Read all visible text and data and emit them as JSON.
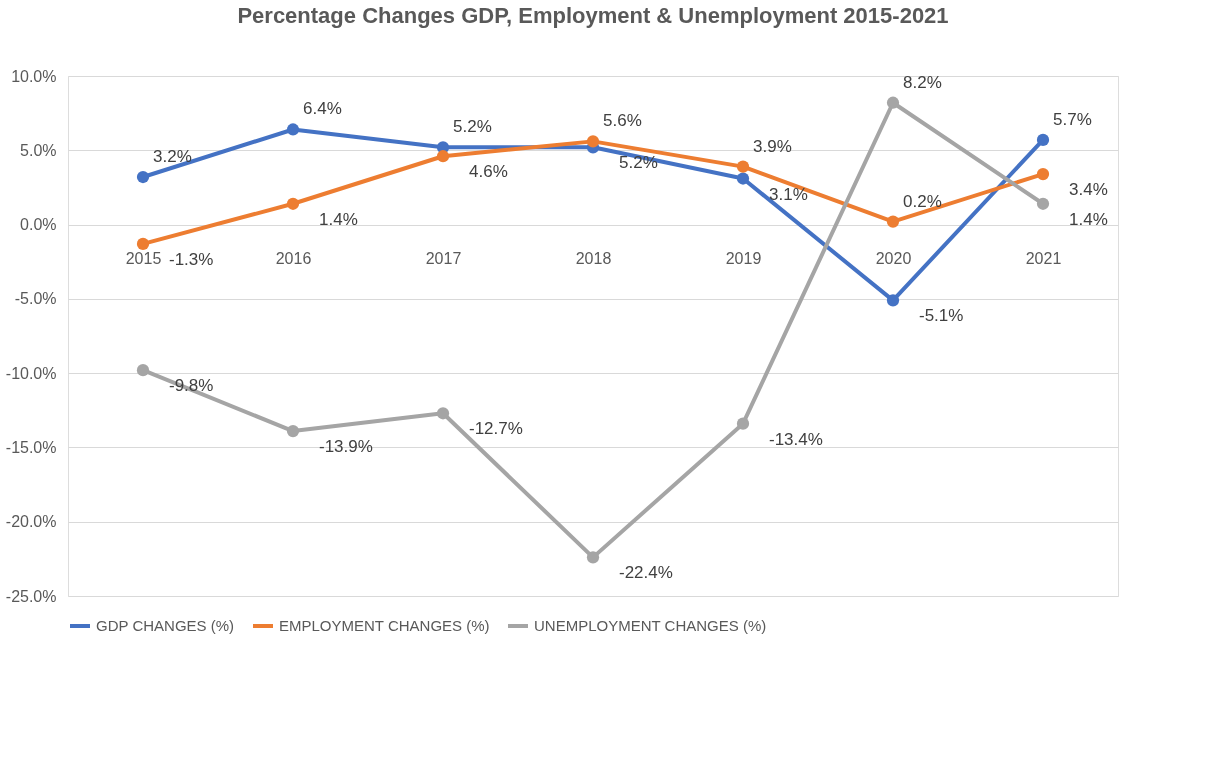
{
  "chart_data": {
    "type": "line",
    "title": "Percentage Changes GDP, Employment & Unemployment 2015-2021",
    "categories": [
      "2015",
      "2016",
      "2017",
      "2018",
      "2019",
      "2020",
      "2021"
    ],
    "series": [
      {
        "name": "GDP CHANGES (%)",
        "color": "#4472c4",
        "values": [
          3.2,
          6.4,
          5.2,
          5.2,
          3.1,
          -5.1,
          5.7
        ],
        "value_labels": [
          "3.2%",
          "6.4%",
          "5.2%",
          "5.2%",
          "3.1%",
          "-5.1%",
          "5.7%"
        ]
      },
      {
        "name": "EMPLOYMENT CHANGES (%)",
        "color": "#ed7d31",
        "values": [
          -1.3,
          1.4,
          4.6,
          5.6,
          3.9,
          0.2,
          3.4
        ],
        "value_labels": [
          "-1.3%",
          "1.4%",
          "4.6%",
          "5.6%",
          "3.9%",
          "0.2%",
          "3.4%"
        ]
      },
      {
        "name": "UNEMPLOYMENT CHANGES (%)",
        "color": "#a5a5a5",
        "values": [
          -9.8,
          -13.9,
          -12.7,
          -22.4,
          -13.4,
          8.2,
          1.4
        ],
        "value_labels": [
          "-9.8%",
          "-13.9%",
          "-12.7%",
          "-22.4%",
          "-13.4%",
          "8.2%",
          "1.4%"
        ]
      }
    ],
    "ylim": [
      -25,
      10
    ],
    "yticks": [
      {
        "value": 10,
        "label": "10.0%"
      },
      {
        "value": 5,
        "label": "5.0%"
      },
      {
        "value": 0,
        "label": "0.0%"
      },
      {
        "value": -5,
        "label": "-5.0%"
      },
      {
        "value": -10,
        "label": "-10.0%"
      },
      {
        "value": -15,
        "label": "-15.0%"
      },
      {
        "value": -20,
        "label": "-20.0%"
      },
      {
        "value": -25,
        "label": "-25.0%"
      }
    ],
    "grid": "y",
    "legend": "bottom",
    "marker": "circle",
    "line_style": "solid"
  }
}
